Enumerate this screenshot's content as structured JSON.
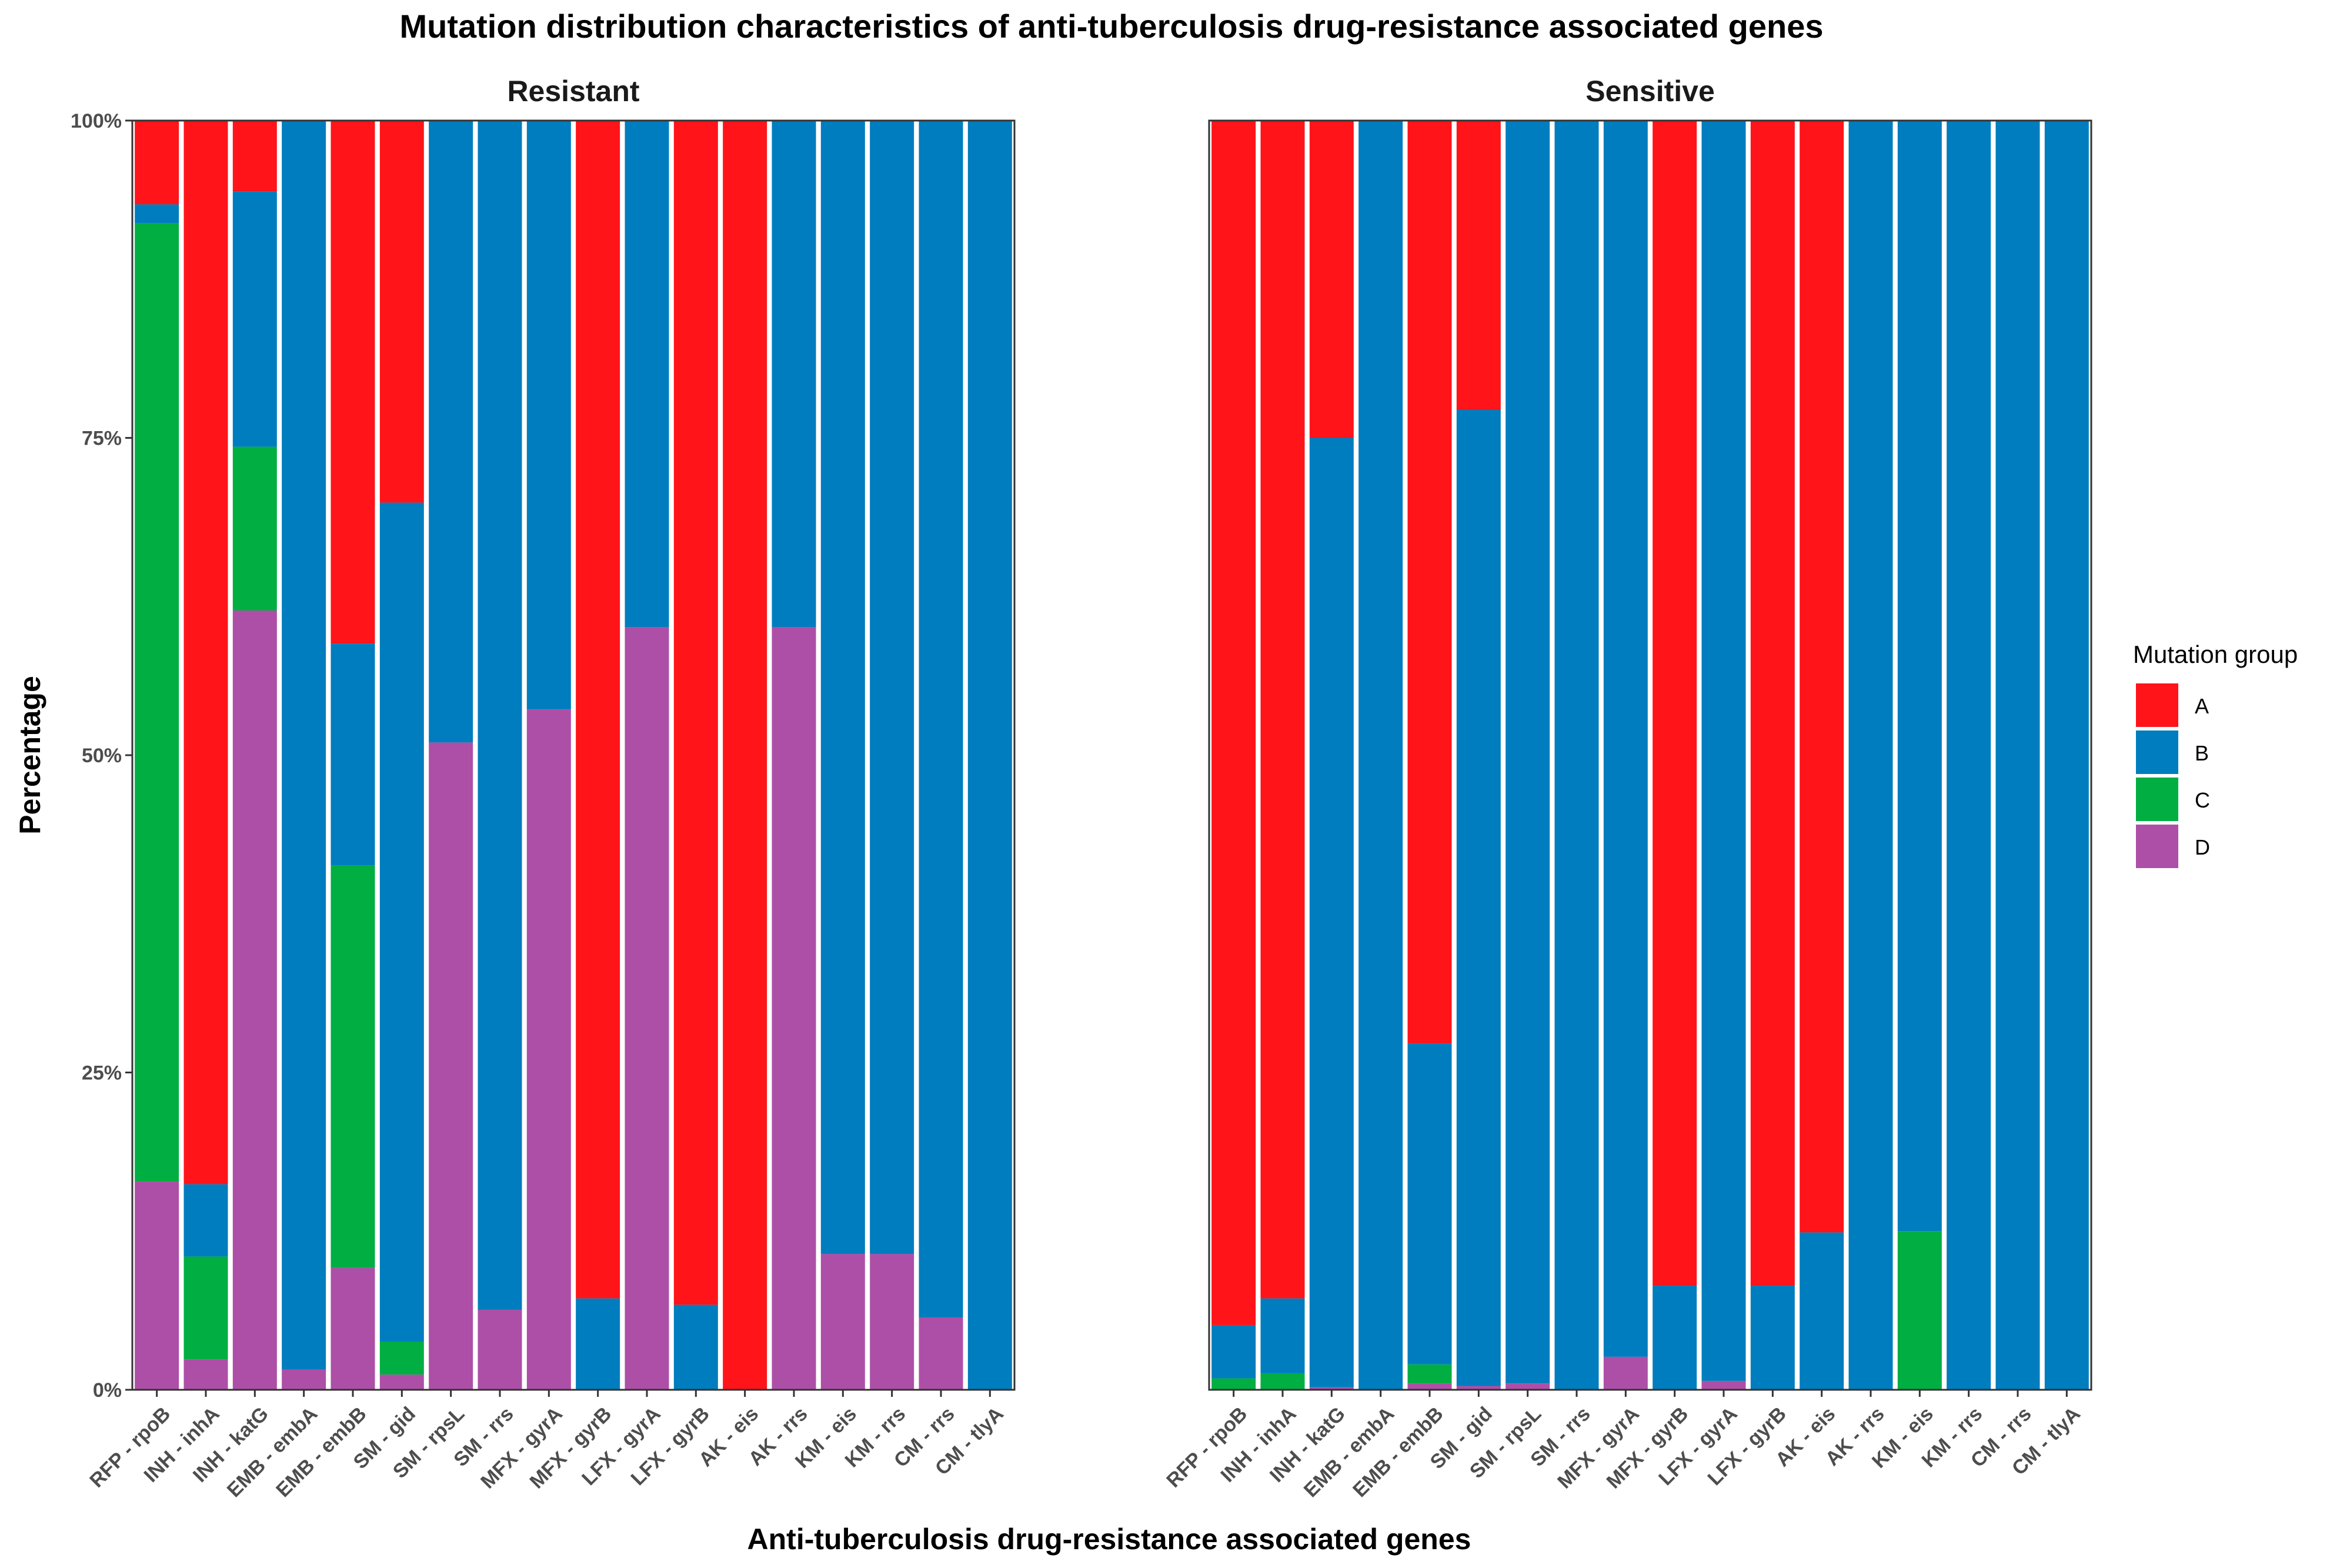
{
  "title": "Mutation distribution characteristics of anti-tuberculosis drug-resistance associated genes",
  "xlabel": "Anti-tuberculosis drug-resistance associated genes",
  "ylabel": "Percentage",
  "legend": {
    "title": "Mutation group",
    "position": "right",
    "items": [
      {
        "key": "A",
        "label": "A",
        "color": "#FF141A"
      },
      {
        "key": "B",
        "label": "B",
        "color": "#007DBE"
      },
      {
        "key": "C",
        "label": "C",
        "color": "#00AE42"
      },
      {
        "key": "D",
        "label": "D",
        "color": "#AD4FA7"
      }
    ]
  },
  "chart_data": [
    {
      "type": "bar",
      "stacked": true,
      "panel": "Resistant",
      "title": "Resistant",
      "ylim": [
        0,
        100
      ],
      "yticks": [
        "0%",
        "25%",
        "50%",
        "75%",
        "100%"
      ],
      "categories": [
        "RFP - rpoB",
        "INH - inhA",
        "INH - katG",
        "EMB - embA",
        "EMB - embB",
        "SM - gid",
        "SM - rpsL",
        "SM - rrs",
        "MFX - gyrA",
        "MFX - gyrB",
        "LFX - gyrA",
        "LFX - gyrB",
        "AK - eis",
        "AK - rrs",
        "KM - eis",
        "KM - rrs",
        "CM - rrs",
        "CM - tlyA"
      ],
      "series": [
        {
          "name": "D",
          "values": [
            16.4,
            2.4,
            61.4,
            1.6,
            9.6,
            1.2,
            51.0,
            6.3,
            53.6,
            0,
            60.1,
            0,
            0,
            60.1,
            10.7,
            10.7,
            5.7,
            0
          ]
        },
        {
          "name": "C",
          "values": [
            75.5,
            8.1,
            12.9,
            0,
            31.7,
            2.6,
            0,
            0,
            0,
            0,
            0,
            0,
            0,
            0,
            0,
            0,
            0,
            0
          ]
        },
        {
          "name": "B",
          "values": [
            1.5,
            5.7,
            20.1,
            98.4,
            17.5,
            66.1,
            49.0,
            93.7,
            46.4,
            7.2,
            39.9,
            6.7,
            0,
            39.9,
            89.3,
            89.3,
            94.3,
            100
          ]
        },
        {
          "name": "A",
          "values": [
            6.6,
            83.8,
            5.6,
            0,
            41.2,
            30.1,
            0,
            0,
            0,
            92.8,
            0,
            93.3,
            100,
            0,
            0,
            0,
            0,
            0
          ]
        }
      ]
    },
    {
      "type": "bar",
      "stacked": true,
      "panel": "Sensitive",
      "title": "Sensitive",
      "ylim": [
        0,
        100
      ],
      "yticks": [
        "0%",
        "25%",
        "50%",
        "75%",
        "100%"
      ],
      "categories": [
        "RFP - rpoB",
        "INH - inhA",
        "INH - katG",
        "EMB - embA",
        "EMB - embB",
        "SM - gid",
        "SM - rpsL",
        "SM - rrs",
        "MFX - gyrA",
        "MFX - gyrB",
        "LFX - gyrA",
        "LFX - gyrB",
        "AK - eis",
        "AK - rrs",
        "KM - eis",
        "KM - rrs",
        "CM - rrs",
        "CM - tlyA"
      ],
      "series": [
        {
          "name": "D",
          "values": [
            0,
            0,
            0.2,
            0,
            0.5,
            0.3,
            0.5,
            0,
            2.6,
            0,
            0.7,
            0,
            0,
            0,
            0,
            0,
            0,
            0
          ]
        },
        {
          "name": "C",
          "values": [
            0.9,
            1.3,
            0,
            0,
            1.5,
            0,
            0,
            0,
            0,
            0,
            0,
            0,
            0,
            0,
            12.5,
            0,
            0,
            0
          ]
        },
        {
          "name": "B",
          "values": [
            4.2,
            5.9,
            74.8,
            100,
            25.3,
            76.9,
            99.5,
            100,
            97.4,
            8.2,
            99.3,
            8.2,
            12.4,
            100,
            87.5,
            100,
            100,
            100
          ]
        },
        {
          "name": "A",
          "values": [
            94.9,
            92.8,
            25.0,
            0,
            72.7,
            22.8,
            0,
            0,
            0,
            91.8,
            0,
            91.8,
            87.6,
            0,
            0,
            0,
            0,
            0
          ]
        }
      ]
    }
  ]
}
